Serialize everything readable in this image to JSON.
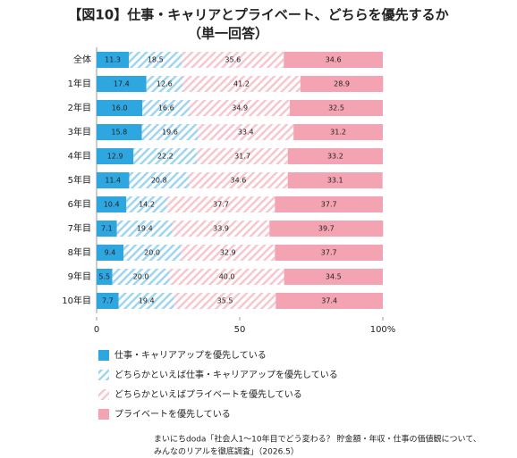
{
  "chart_data": {
    "type": "stacked-bar-horizontal",
    "title": "【図10】仕事・キャリアとプライベート、どちらを優先するか",
    "subtitle": "（単一回答）",
    "categories": [
      "全体",
      "1年目",
      "2年目",
      "3年目",
      "4年目",
      "5年目",
      "6年目",
      "7年目",
      "8年目",
      "9年目",
      "10年目"
    ],
    "series": [
      {
        "name": "仕事・キャリアアップを優先している",
        "color": "#2ea7e0",
        "hatch": false,
        "values": [
          11.3,
          17.4,
          16.0,
          15.8,
          12.9,
          11.4,
          10.4,
          7.1,
          9.4,
          5.5,
          7.7
        ],
        "value_labels": [
          "11.3",
          "17.4",
          "16.0",
          "15.8",
          "12.9",
          "11.4",
          "10.4",
          "7.1",
          "9.4",
          "5.5",
          "7.7"
        ]
      },
      {
        "name": "どちらかといえば仕事・キャリアアップを優先している",
        "color": "#9fd5f0",
        "hatch": true,
        "values": [
          18.5,
          12.6,
          16.6,
          19.6,
          22.2,
          20.8,
          14.2,
          19.4,
          20.0,
          20.0,
          19.4
        ],
        "value_labels": [
          "18.5",
          "12.6",
          "16.6",
          "19.6",
          "22.2",
          "20.8",
          "14.2",
          "19.4",
          "20.0",
          "20.0",
          "19.4"
        ]
      },
      {
        "name": "どちらかといえばプライベートを優先している",
        "color": "#f7c6cf",
        "hatch": true,
        "values": [
          35.6,
          41.2,
          34.9,
          33.4,
          31.7,
          34.6,
          37.7,
          33.9,
          32.9,
          40.0,
          35.5
        ],
        "value_labels": [
          "35.6",
          "41.2",
          "34.9",
          "33.4",
          "31.7",
          "34.6",
          "37.7",
          "33.9",
          "32.9",
          "40.0",
          "35.5"
        ]
      },
      {
        "name": "プライベートを優先している",
        "color": "#f4a3b3",
        "hatch": false,
        "values": [
          34.6,
          28.9,
          32.5,
          31.2,
          33.2,
          33.1,
          37.7,
          39.7,
          37.7,
          34.5,
          37.4
        ],
        "value_labels": [
          "34.6",
          "28.9",
          "32.5",
          "31.2",
          "33.2",
          "33.1",
          "37.7",
          "39.7",
          "37.7",
          "34.5",
          "37.4"
        ]
      }
    ],
    "xlim": [
      0,
      100
    ],
    "xticks": [
      0,
      50,
      {
        "value": 100,
        "label": "100%"
      }
    ],
    "source": [
      "まいにちdoda「社会人1～10年目でどう変わる？ 貯金額・年収・仕事の価値観について、",
      "みんなのリアルを徹底調査」（2026.5）"
    ]
  }
}
